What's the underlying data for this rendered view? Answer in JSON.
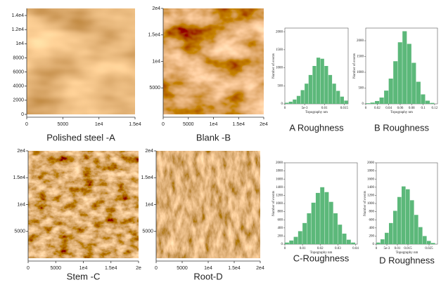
{
  "figure": {
    "panels": [
      {
        "caption": "Polished steel -A",
        "xlim": [
          0,
          15000
        ],
        "ylim": [
          0,
          15000
        ],
        "xticks": [
          0,
          5000,
          {
            "value": 10000,
            "label": "1e4"
          },
          {
            "value": 15000,
            "label": "1.5e4"
          }
        ],
        "yticks": [
          0,
          2000,
          4000,
          6000,
          8000,
          {
            "value": 10000,
            "label": "1e4"
          },
          {
            "value": 12000,
            "label": "1.2e4"
          },
          {
            "value": 14000,
            "label": "1.4e4"
          }
        ]
      },
      {
        "caption": "Blank -B",
        "xlim": [
          0,
          20000
        ],
        "ylim": [
          0,
          20000
        ],
        "xticks": [
          0,
          5000,
          {
            "value": 10000,
            "label": "1e4"
          },
          {
            "value": 15000,
            "label": "1.5e4"
          },
          {
            "value": 20000,
            "label": "2e4"
          }
        ],
        "yticks": [
          5000,
          {
            "value": 10000,
            "label": "1e4"
          },
          {
            "value": 15000,
            "label": "1.5e4"
          },
          {
            "value": 20000,
            "label": "2e4"
          }
        ]
      },
      {
        "caption": "Stem -C",
        "xlim": [
          0,
          20000
        ],
        "ylim": [
          0,
          20000
        ],
        "xticks": [
          0,
          5000,
          {
            "value": 10000,
            "label": "1e4"
          },
          {
            "value": 15000,
            "label": "1.5e4"
          },
          {
            "value": 20000,
            "label": "2e"
          }
        ],
        "yticks": [
          5000,
          {
            "value": 10000,
            "label": "1e4"
          },
          {
            "value": 15000,
            "label": "1.5e4"
          },
          {
            "value": 20000,
            "label": "2e4"
          }
        ]
      },
      {
        "caption": "Root-D",
        "xlim": [
          0,
          20000
        ],
        "ylim": [
          0,
          20000
        ],
        "xticks": [
          0,
          5000,
          {
            "value": 10000,
            "label": "1e4"
          },
          {
            "value": 15000,
            "label": "1.5e4"
          },
          {
            "value": 20000,
            "label": "2e4"
          }
        ],
        "yticks": [
          5000,
          {
            "value": 10000,
            "label": "1e4"
          },
          {
            "value": 15000,
            "label": "1.5e4"
          },
          {
            "value": 20000,
            "label": "2e4"
          }
        ]
      }
    ]
  },
  "chart_data": [
    {
      "type": "histogram",
      "title": "A Roughness",
      "x_label": "Topography  nm",
      "y_label": "Number of events",
      "color": "#5cb87a",
      "bins": [
        0,
        0.001,
        0.002,
        0.003,
        0.004,
        0.005,
        0.006,
        0.007,
        0.008,
        0.009,
        0.01,
        0.011,
        0.012,
        0.013,
        0.014,
        0.015,
        0.016
      ],
      "counts": [
        30,
        60,
        120,
        220,
        380,
        560,
        800,
        1050,
        1280,
        1250,
        1050,
        800,
        560,
        360,
        200,
        90
      ],
      "xlim": [
        0,
        0.016
      ],
      "ylim": [
        0,
        2100
      ],
      "xticks": [
        0,
        {
          "value": 0.005,
          "label": "5e-3"
        },
        0.01,
        0.015
      ],
      "yticks": [
        0,
        500,
        1000,
        1500,
        2000
      ]
    },
    {
      "type": "histogram",
      "title": "B Roughness",
      "x_label": "Topography  nm",
      "y_label": "Number of events",
      "color": "#5cb87a",
      "bins": [
        0,
        0.008,
        0.016,
        0.024,
        0.032,
        0.04,
        0.048,
        0.056,
        0.064,
        0.072,
        0.08,
        0.088,
        0.096,
        0.104,
        0.112,
        0.12
      ],
      "counts": [
        20,
        40,
        90,
        200,
        420,
        800,
        1350,
        1950,
        2300,
        1900,
        1300,
        700,
        300,
        100,
        30
      ],
      "xlim": [
        0,
        0.125
      ],
      "ylim": [
        0,
        2400
      ],
      "xticks": [
        0,
        0.02,
        0.04,
        0.06,
        0.08,
        0.1,
        0.12
      ],
      "yticks": [
        0,
        500,
        1000,
        1500,
        2000
      ]
    },
    {
      "type": "histogram",
      "title": "C-Roughness",
      "x_label": "Topography  nm",
      "y_label": "Number of events",
      "color": "#5cb87a",
      "bins": [
        0,
        0.0025,
        0.005,
        0.0075,
        0.01,
        0.0125,
        0.015,
        0.0175,
        0.02,
        0.0225,
        0.025,
        0.0275,
        0.03,
        0.0325,
        0.035,
        0.0375,
        0.04
      ],
      "counts": [
        40,
        90,
        180,
        320,
        520,
        760,
        1020,
        1260,
        1400,
        1280,
        1040,
        760,
        480,
        260,
        110,
        40
      ],
      "xlim": [
        0,
        0.041
      ],
      "ylim": [
        0,
        2000
      ],
      "xticks": [
        0,
        0.01,
        0.02,
        0.03,
        0.04
      ],
      "yticks": [
        0,
        200,
        400,
        600,
        800,
        1000,
        1200,
        1400,
        1600,
        1800,
        2000
      ]
    },
    {
      "type": "histogram",
      "title": "D Roughness",
      "x_label": "Topography  nm",
      "y_label": "Number of events",
      "color": "#5cb87a",
      "bins": [
        0,
        0.002,
        0.004,
        0.006,
        0.008,
        0.01,
        0.012,
        0.014,
        0.016,
        0.018,
        0.02,
        0.022,
        0.024,
        0.026,
        0.028
      ],
      "counts": [
        40,
        120,
        280,
        520,
        820,
        1160,
        1420,
        1350,
        1080,
        720,
        420,
        200,
        80,
        30
      ],
      "xlim": [
        0,
        0.029
      ],
      "ylim": [
        0,
        2000
      ],
      "xticks": [
        0,
        {
          "value": 0.005,
          "label": "5e-3"
        },
        0.01,
        0.015,
        0.025
      ],
      "yticks": [
        0,
        200,
        400,
        600,
        800,
        1000,
        1200,
        1400,
        1600,
        1800,
        2000
      ]
    }
  ]
}
